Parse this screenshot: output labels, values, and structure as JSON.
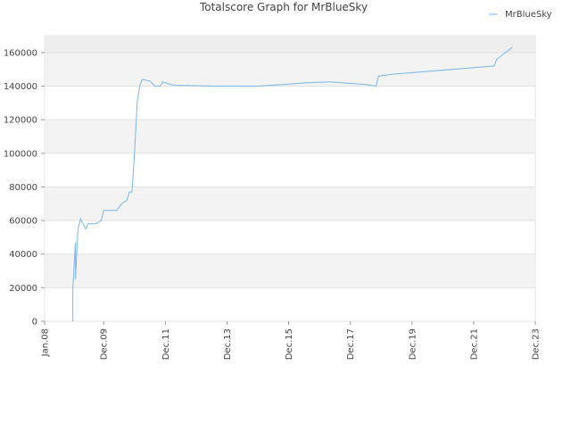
{
  "chart_data": {
    "type": "line",
    "title": "Totalscore Graph for MrBlueSky",
    "x": [
      "2008-12",
      "2008-12",
      "2009-01",
      "2009-01",
      "2009-02",
      "2009-03",
      "2009-05",
      "2009-06",
      "2009-09",
      "2009-11",
      "2009-12",
      "2010-05",
      "2010-07",
      "2010-09",
      "2010-10",
      "2010-11",
      "2010-12",
      "2011-01",
      "2011-02",
      "2011-03",
      "2011-06",
      "2011-08",
      "2011-10",
      "2011-11",
      "2012-03",
      "2013-07",
      "2014-12",
      "2015-10",
      "2016-07",
      "2017-04",
      "2018-06",
      "2018-10",
      "2018-11",
      "2019-04",
      "2022-08",
      "2022-09",
      "2023-03"
    ],
    "series": [
      {
        "name": "MrBlueSky",
        "color": "#7cb5ec",
        "values": [
          0,
          20000,
          47000,
          25000,
          55000,
          61000,
          55000,
          58000,
          58000,
          60000,
          66000,
          66000,
          70000,
          72000,
          77000,
          77000,
          100000,
          130000,
          140000,
          144000,
          143000,
          140000,
          140000,
          142500,
          140500,
          140000,
          140000,
          141000,
          142000,
          142500,
          141000,
          140000,
          146000,
          147000,
          152000,
          156000,
          163000
        ]
      }
    ],
    "xlim": [
      "2008-01",
      "2023-12"
    ],
    "xticks": [
      {
        "value": "2008-01",
        "label": "Jan.08"
      },
      {
        "value": "2009-12",
        "label": "Dec.09"
      },
      {
        "value": "2011-12",
        "label": "Dec.11"
      },
      {
        "value": "2013-12",
        "label": "Dec.13"
      },
      {
        "value": "2015-12",
        "label": "Dec.15"
      },
      {
        "value": "2017-12",
        "label": "Dec.17"
      },
      {
        "value": "2019-12",
        "label": "Dec.19"
      },
      {
        "value": "2021-12",
        "label": "Dec.21"
      },
      {
        "value": "2023-12",
        "label": "Dec.23"
      }
    ],
    "ylim": [
      0,
      170000
    ],
    "yticks": [
      0,
      20000,
      40000,
      60000,
      80000,
      100000,
      120000,
      140000,
      160000
    ],
    "grid": true,
    "legend": "top-right"
  }
}
